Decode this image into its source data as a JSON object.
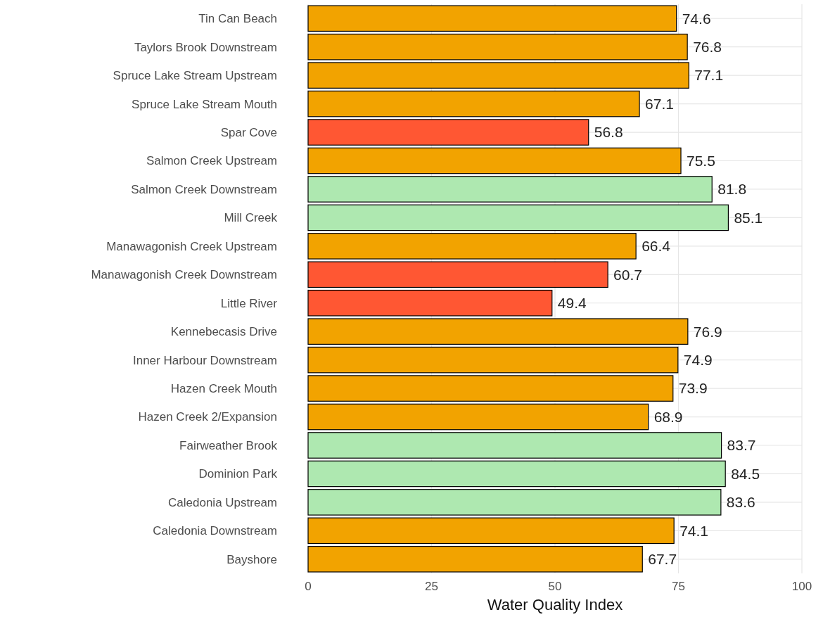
{
  "chart_data": {
    "type": "bar",
    "orientation": "horizontal",
    "xlabel": "Water Quality Index",
    "categories": [
      "Tin Can Beach",
      "Taylors Brook Downstream",
      "Spruce Lake Stream Upstream",
      "Spruce Lake Stream Mouth",
      "Spar Cove",
      "Salmon Creek Upstream",
      "Salmon Creek Downstream",
      "Mill Creek",
      "Manawagonish Creek Upstream",
      "Manawagonish Creek Downstream",
      "Little River",
      "Kennebecasis Drive",
      "Inner Harbour Downstream",
      "Hazen Creek Mouth",
      "Hazen Creek 2/Expansion",
      "Fairweather Brook",
      "Dominion Park",
      "Caledonia Upstream",
      "Caledonia Downstream",
      "Bayshore"
    ],
    "values": [
      74.6,
      76.8,
      77.1,
      67.1,
      56.8,
      75.5,
      81.8,
      85.1,
      66.4,
      60.7,
      49.4,
      76.9,
      74.9,
      73.9,
      68.9,
      83.7,
      84.5,
      83.6,
      74.1,
      67.7
    ],
    "colors": [
      "#f2a300",
      "#f2a300",
      "#f2a300",
      "#f2a300",
      "#ff5733",
      "#f2a300",
      "#aee8b0",
      "#aee8b0",
      "#f2a300",
      "#ff5733",
      "#ff5733",
      "#f2a300",
      "#f2a300",
      "#f2a300",
      "#f2a300",
      "#aee8b0",
      "#aee8b0",
      "#aee8b0",
      "#f2a300",
      "#f2a300"
    ],
    "xlim": [
      0,
      100
    ],
    "xticks": [
      0,
      25,
      50,
      75,
      100
    ],
    "grid": true,
    "data_labels": true
  }
}
